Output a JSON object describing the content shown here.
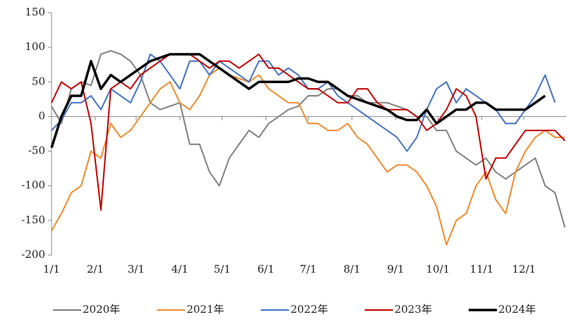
{
  "chart_data": {
    "type": "line",
    "x": [
      0,
      7,
      14,
      21,
      28,
      35,
      42,
      49,
      56,
      63,
      70,
      77,
      84,
      91,
      98,
      105,
      112,
      119,
      126,
      133,
      140,
      147,
      154,
      161,
      168,
      175,
      182,
      189,
      196,
      203,
      210,
      217,
      224,
      231,
      238,
      245,
      252,
      259,
      266,
      273,
      280,
      287,
      294,
      301,
      308,
      315,
      322,
      329,
      336,
      343,
      350,
      357,
      364
    ],
    "xlim": [
      0,
      365
    ],
    "xticks": [
      {
        "value": 0,
        "label": "1/1"
      },
      {
        "value": 31,
        "label": "2/1"
      },
      {
        "value": 60,
        "label": "3/1"
      },
      {
        "value": 91,
        "label": "4/1"
      },
      {
        "value": 121,
        "label": "5/1"
      },
      {
        "value": 152,
        "label": "6/1"
      },
      {
        "value": 182,
        "label": "7/1"
      },
      {
        "value": 213,
        "label": "8/1"
      },
      {
        "value": 244,
        "label": "9/1"
      },
      {
        "value": 274,
        "label": "10/1"
      },
      {
        "value": 305,
        "label": "11/1"
      },
      {
        "value": 335,
        "label": "12/1"
      }
    ],
    "ylim": [
      -200,
      150
    ],
    "yticks": [
      -200,
      -150,
      -100,
      -50,
      0,
      50,
      100,
      150
    ],
    "series": [
      {
        "name": "2020年",
        "color": "#808080",
        "width": 2,
        "values": [
          15,
          -10,
          40,
          50,
          45,
          90,
          95,
          90,
          80,
          60,
          20,
          10,
          15,
          20,
          -40,
          -40,
          -80,
          -100,
          -60,
          -40,
          -20,
          -30,
          -10,
          0,
          10,
          15,
          30,
          30,
          40,
          40,
          30,
          30,
          20,
          20,
          20,
          15,
          10,
          0,
          0,
          -20,
          -20,
          -50,
          -60,
          -70,
          -60,
          -80,
          -90,
          -80,
          -70,
          -60,
          -100,
          -110,
          -160
        ]
      },
      {
        "name": "2021年",
        "color": "#f08a30",
        "width": 2,
        "values": [
          -165,
          -140,
          -110,
          -100,
          -50,
          -60,
          -10,
          -30,
          -20,
          0,
          20,
          40,
          50,
          20,
          10,
          30,
          60,
          70,
          60,
          55,
          50,
          60,
          40,
          30,
          20,
          20,
          -10,
          -10,
          -20,
          -20,
          -10,
          -30,
          -40,
          -60,
          -80,
          -70,
          -70,
          -80,
          -100,
          -130,
          -185,
          -150,
          -140,
          -100,
          -80,
          -120,
          -140,
          -80,
          -50,
          -30,
          -20,
          -30,
          -30
        ]
      },
      {
        "name": "2022年",
        "color": "#4472c4",
        "width": 2,
        "values": [
          -20,
          -5,
          20,
          20,
          30,
          10,
          40,
          30,
          20,
          50,
          90,
          80,
          60,
          40,
          80,
          80,
          60,
          80,
          70,
          60,
          50,
          80,
          80,
          60,
          70,
          60,
          40,
          40,
          50,
          30,
          20,
          10,
          0,
          -10,
          -20,
          -30,
          -50,
          -30,
          10,
          40,
          50,
          20,
          40,
          30,
          20,
          10,
          -10,
          -10,
          10,
          30,
          60,
          20,
          null
        ]
      },
      {
        "name": "2023年",
        "color": "#c00000",
        "width": 2,
        "values": [
          20,
          50,
          40,
          50,
          -10,
          -135,
          40,
          50,
          40,
          60,
          70,
          80,
          90,
          90,
          90,
          80,
          70,
          80,
          80,
          70,
          80,
          90,
          70,
          70,
          60,
          50,
          40,
          40,
          30,
          20,
          20,
          40,
          40,
          20,
          10,
          10,
          10,
          0,
          -20,
          -10,
          10,
          40,
          30,
          0,
          -90,
          -60,
          -60,
          -40,
          -20,
          -20,
          -20,
          -20,
          -35
        ]
      },
      {
        "name": "2024年",
        "color": "#000000",
        "width": 3.5,
        "values": [
          -45,
          0,
          30,
          30,
          80,
          40,
          60,
          50,
          60,
          70,
          80,
          85,
          90,
          90,
          90,
          90,
          80,
          70,
          60,
          50,
          40,
          50,
          50,
          50,
          50,
          55,
          55,
          50,
          50,
          40,
          30,
          25,
          20,
          15,
          10,
          0,
          -5,
          -5,
          10,
          -10,
          0,
          10,
          10,
          20,
          20,
          10,
          10,
          10,
          10,
          20,
          30,
          null,
          null
        ]
      }
    ]
  }
}
